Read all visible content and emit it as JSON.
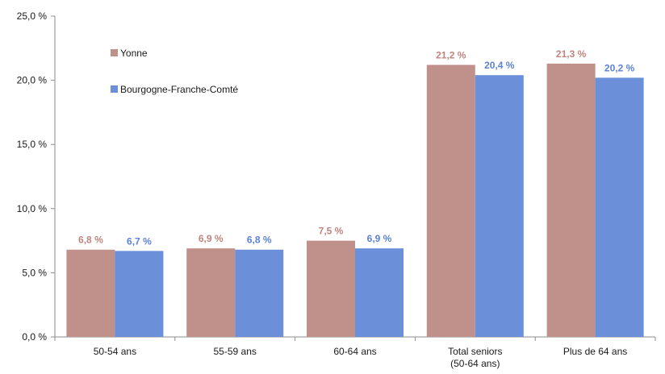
{
  "chart_data": {
    "type": "bar",
    "categories": [
      [
        "50-54 ans"
      ],
      [
        "55-59 ans"
      ],
      [
        "60-64 ans"
      ],
      [
        "Total seniors",
        "(50-64 ans)"
      ],
      [
        "Plus de 64 ans"
      ]
    ],
    "series": [
      {
        "name": "Yonne",
        "color": "#c0908a",
        "label_color": "#c0847e",
        "values": [
          6.8,
          6.9,
          7.5,
          21.2,
          21.3
        ],
        "labels": [
          "6,8 %",
          "6,9 %",
          "7,5 %",
          "21,2 %",
          "21,3 %"
        ]
      },
      {
        "name": "Bourgogne-Franche-Comté",
        "color": "#6b8fd9",
        "label_color": "#5b82d6",
        "values": [
          6.7,
          6.8,
          6.9,
          20.4,
          20.2
        ],
        "labels": [
          "6,7 %",
          "6,8 %",
          "6,9 %",
          "20,4 %",
          "20,2 %"
        ]
      }
    ],
    "ylim": [
      0,
      25
    ],
    "yticks": [
      0,
      5,
      10,
      15,
      20,
      25
    ],
    "ytick_labels": [
      "0,0 %",
      "5,0 %",
      "10,0 %",
      "15,0 %",
      "20,0 %",
      "25,0 %"
    ],
    "legend_position": "top-left",
    "grid": false
  }
}
